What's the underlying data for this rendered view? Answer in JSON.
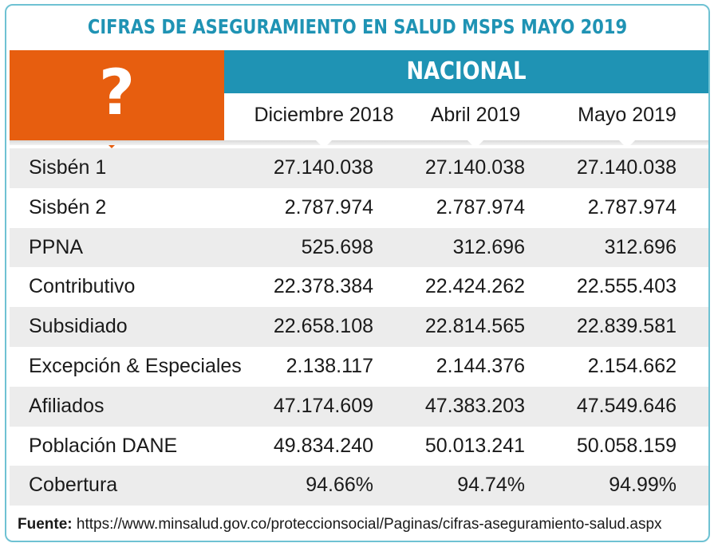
{
  "title": "CIFRAS DE ASEGURAMIENTO EN SALUD MSPS MAYO 2019",
  "question_mark": "?",
  "header": {
    "group": "NACIONAL",
    "columns": [
      "Diciembre 2018",
      "Abril 2019",
      "Mayo 2019"
    ]
  },
  "rows": [
    {
      "label": "Sisbén 1",
      "values": [
        "27.140.038",
        "27.140.038",
        "27.140.038"
      ]
    },
    {
      "label": "Sisbén 2",
      "values": [
        "2.787.974",
        "2.787.974",
        "2.787.974"
      ]
    },
    {
      "label": "PPNA",
      "values": [
        "525.698",
        "312.696",
        "312.696"
      ]
    },
    {
      "label": "Contributivo",
      "values": [
        "22.378.384",
        "22.424.262",
        "22.555.403"
      ]
    },
    {
      "label": "Subsidiado",
      "values": [
        "22.658.108",
        "22.814.565",
        "22.839.581"
      ]
    },
    {
      "label": "Excepción & Especiales",
      "values": [
        "2.138.117",
        "2.144.376",
        "2.154.662"
      ]
    },
    {
      "label": "Afiliados",
      "values": [
        "47.174.609",
        "47.383.203",
        "47.549.646"
      ]
    },
    {
      "label": "Población DANE",
      "values": [
        "49.834.240",
        "50.013.241",
        "50.058.159"
      ]
    },
    {
      "label": "Cobertura",
      "values": [
        "94.66%",
        "94.74%",
        "94.99%"
      ]
    }
  ],
  "footer": {
    "label": "Fuente:",
    "url": "https://www.minsalud.gov.co/proteccionsocial/Paginas/cifras-aseguramiento-salud.aspx"
  },
  "colors": {
    "accent_blue": "#1f93b4",
    "accent_orange": "#e75e0f",
    "border": "#6fc2d3",
    "row_shade": "#ececec"
  }
}
